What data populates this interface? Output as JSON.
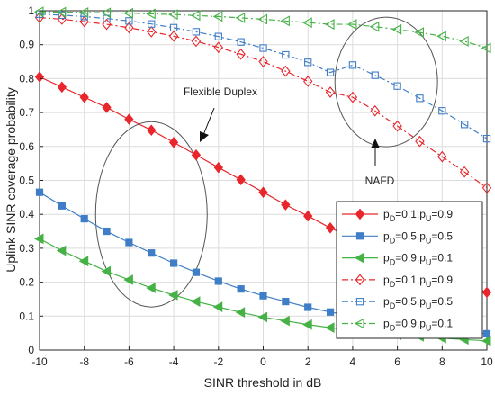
{
  "chart_data": {
    "type": "line",
    "xlabel": "SINR threshold in dB",
    "ylabel": "Uplink SINR coverage probability",
    "xlim": [
      -10,
      10
    ],
    "ylim": [
      0,
      1
    ],
    "x_ticks": [
      -10,
      -8,
      -6,
      -4,
      -2,
      0,
      2,
      4,
      6,
      8,
      10
    ],
    "y_ticks": [
      0,
      0.1,
      0.2,
      0.3,
      0.4,
      0.5,
      0.6,
      0.7,
      0.8,
      0.9,
      1
    ],
    "x_tick_labels": [
      "-10",
      "-8",
      "-6",
      "-4",
      "-2",
      "0",
      "2",
      "4",
      "6",
      "8",
      "10"
    ],
    "y_tick_labels": [
      "0",
      "0.1",
      "0.2",
      "0.3",
      "0.4",
      "0.5",
      "0.6",
      "0.7",
      "0.8",
      "0.9",
      "1"
    ],
    "grid": true,
    "legend_position": "bottom-right",
    "x": [
      -10,
      -9,
      -8,
      -7,
      -6,
      -5,
      -4,
      -3,
      -2,
      -1,
      0,
      1,
      2,
      3,
      4,
      5,
      6,
      7,
      8,
      9,
      10
    ],
    "series": [
      {
        "name": "pD=0.1,pU=0.9",
        "label_parts": [
          "p",
          "D",
          "=0.1,p",
          "U",
          "=0.9"
        ],
        "color": "#e8262b",
        "style": "solid",
        "marker": "diamond",
        "filled": true,
        "values": [
          0.805,
          0.775,
          0.745,
          0.715,
          0.68,
          0.648,
          0.612,
          0.575,
          0.538,
          0.502,
          0.465,
          0.428,
          0.395,
          0.36,
          0.33,
          0.3,
          0.27,
          0.243,
          0.22,
          0.195,
          0.17
        ]
      },
      {
        "name": "pD=0.5,pU=0.5",
        "label_parts": [
          "p",
          "D",
          "=0.5,p",
          "U",
          "=0.5"
        ],
        "color": "#3f7ec6",
        "style": "solid",
        "marker": "square",
        "filled": true,
        "values": [
          0.465,
          0.425,
          0.387,
          0.35,
          0.317,
          0.286,
          0.256,
          0.229,
          0.203,
          0.18,
          0.16,
          0.143,
          0.126,
          0.112,
          0.1,
          0.088,
          0.078,
          0.069,
          0.061,
          0.054,
          0.048
        ]
      },
      {
        "name": "pD=0.9,pU=0.1",
        "label_parts": [
          "p",
          "D",
          "=0.9,p",
          "U",
          "=0.1"
        ],
        "color": "#46b246",
        "style": "solid",
        "marker": "triangle-left",
        "filled": true,
        "values": [
          0.328,
          0.293,
          0.262,
          0.232,
          0.207,
          0.183,
          0.162,
          0.143,
          0.127,
          0.111,
          0.097,
          0.086,
          0.075,
          0.066,
          0.058,
          0.051,
          0.045,
          0.04,
          0.035,
          0.031,
          0.027
        ]
      },
      {
        "name": "pD=0.1,pU=0.9",
        "label_parts": [
          "p",
          "D",
          "=0.1,p",
          "U",
          "=0.9"
        ],
        "color": "#e8262b",
        "style": "dashdot",
        "marker": "diamond",
        "filled": false,
        "values": [
          0.98,
          0.975,
          0.968,
          0.96,
          0.95,
          0.938,
          0.925,
          0.91,
          0.892,
          0.872,
          0.85,
          0.822,
          0.792,
          0.76,
          0.745,
          0.705,
          0.66,
          0.615,
          0.57,
          0.525,
          0.478
        ]
      },
      {
        "name": "pD=0.5,pU=0.5",
        "label_parts": [
          "p",
          "D",
          "=0.5,p",
          "U",
          "=0.5"
        ],
        "color": "#3f7ec6",
        "style": "dashdot",
        "marker": "square",
        "filled": false,
        "values": [
          0.99,
          0.987,
          0.983,
          0.977,
          0.97,
          0.961,
          0.95,
          0.938,
          0.924,
          0.908,
          0.89,
          0.87,
          0.848,
          0.818,
          0.84,
          0.81,
          0.778,
          0.742,
          0.705,
          0.665,
          0.623
        ]
      },
      {
        "name": "pD=0.9,pU=0.1",
        "label_parts": [
          "p",
          "D",
          "=0.9,p",
          "U",
          "=0.1"
        ],
        "color": "#46b246",
        "style": "dashdot",
        "marker": "triangle-left",
        "filled": false,
        "values": [
          0.997,
          0.996,
          0.995,
          0.994,
          0.993,
          0.991,
          0.989,
          0.986,
          0.983,
          0.979,
          0.975,
          0.97,
          0.965,
          0.96,
          0.96,
          0.953,
          0.945,
          0.936,
          0.925,
          0.91,
          0.89
        ]
      }
    ],
    "annotations": [
      {
        "text": "Flexible Duplex"
      },
      {
        "text": "NAFD"
      }
    ],
    "ellipses": [
      {
        "cx": -5,
        "cy": 0.4
      },
      {
        "cx": 5.5,
        "cy": 0.79
      }
    ],
    "arrows": [
      {
        "from_x": -3.5,
        "from_y": 0.66,
        "to_x": -3.8,
        "to_y": 0.6
      },
      {
        "from_x": 4.2,
        "from_y": 0.52,
        "to_x": 4.2,
        "to_y": 0.61
      }
    ]
  }
}
